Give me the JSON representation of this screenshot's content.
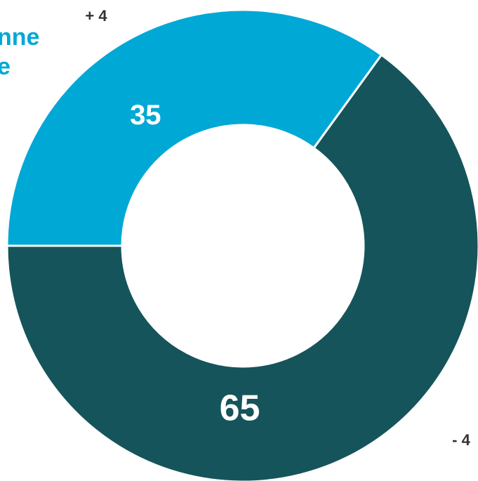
{
  "chart_data": {
    "type": "pie",
    "donut": true,
    "categories": [
      "",
      ""
    ],
    "values": [
      35,
      65
    ],
    "value_labels": [
      "35",
      "65"
    ],
    "change_labels": [
      "+ 4",
      "- 4"
    ],
    "colors": [
      "#00a8d6",
      "#15545a"
    ],
    "legend_text": "nne\ne",
    "title": "",
    "xlabel": "",
    "ylabel": ""
  }
}
